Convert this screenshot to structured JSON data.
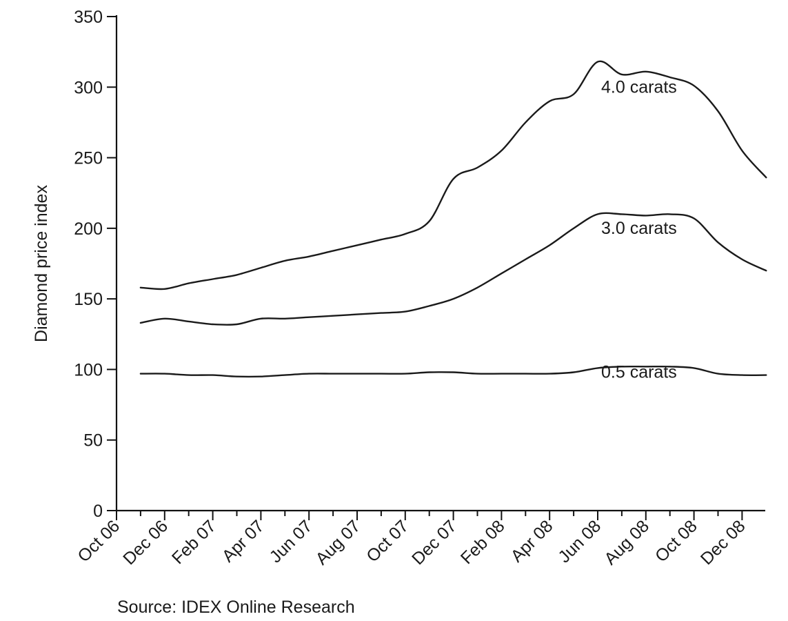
{
  "chart_data": {
    "type": "line",
    "title": "",
    "xlabel": "",
    "ylabel": "Diamond price index",
    "ylim": [
      0,
      350
    ],
    "yticks": [
      0,
      50,
      100,
      150,
      200,
      250,
      300,
      350
    ],
    "x_tick_labels": [
      "Oct 06",
      "Dec 06",
      "Feb 07",
      "Apr 07",
      "Jun 07",
      "Aug 07",
      "Oct 07",
      "Dec 07",
      "Feb 08",
      "Apr 08",
      "Jun 08",
      "Aug 08",
      "Oct 08",
      "Dec 08"
    ],
    "grid": false,
    "legend": "none",
    "x": [
      "Nov 06",
      "Dec 06",
      "Jan 07",
      "Feb 07",
      "Mar 07",
      "Apr 07",
      "May 07",
      "Jun 07",
      "Jul 07",
      "Aug 07",
      "Sep 07",
      "Oct 07",
      "Nov 07",
      "Dec 07",
      "Jan 08",
      "Feb 08",
      "Mar 08",
      "Apr 08",
      "May 08",
      "Jun 08",
      "Jul 08",
      "Aug 08",
      "Sep 08",
      "Oct 08",
      "Nov 08",
      "Dec 08",
      "Jan 09"
    ],
    "series": [
      {
        "name": "4.0 carats",
        "values": [
          158,
          157,
          161,
          164,
          167,
          172,
          177,
          180,
          184,
          188,
          192,
          196,
          205,
          235,
          243,
          255,
          275,
          290,
          295,
          318,
          309,
          311,
          307,
          301,
          283,
          255,
          236
        ]
      },
      {
        "name": "3.0 carats",
        "values": [
          133,
          136,
          134,
          132,
          132,
          136,
          136,
          137,
          138,
          139,
          140,
          141,
          145,
          150,
          158,
          168,
          178,
          188,
          200,
          210,
          210,
          209,
          210,
          207,
          190,
          178,
          170
        ]
      },
      {
        "name": "0.5 carats",
        "values": [
          97,
          97,
          96,
          96,
          95,
          95,
          96,
          97,
          97,
          97,
          97,
          97,
          98,
          98,
          97,
          97,
          97,
          97,
          98,
          101,
          102,
          102,
          102,
          101,
          97,
          96,
          96
        ]
      }
    ],
    "series_labels": [
      "4.0 carats",
      "3.0 carats",
      "0.5 carats"
    ],
    "source_note": "Source: IDEX Online Research"
  }
}
